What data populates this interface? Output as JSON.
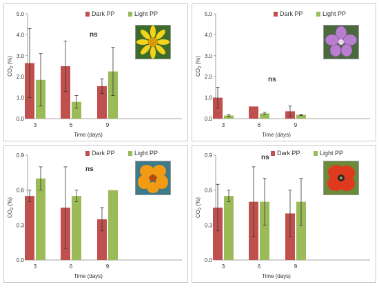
{
  "colors": {
    "dark": "#c0504d",
    "light": "#9bbb59",
    "axis": "#000000",
    "err": "#333333"
  },
  "chart_data": [
    {
      "type": "bar",
      "categories": [
        "3",
        "6",
        "9"
      ],
      "xlabel": "Time (days)",
      "ylabel": "CO2 (%)",
      "ylim": [
        0,
        5
      ],
      "yticks": [
        "0.0",
        "1.0",
        "2.0",
        "3.0",
        "4.0",
        "5.0"
      ],
      "annotation": "ns",
      "legend": "top-right",
      "flower_icon": "yellow-daisy-icon",
      "series": [
        {
          "name": "Dark PP",
          "values": [
            2.65,
            2.5,
            1.55
          ],
          "errors": [
            1.65,
            1.2,
            0.35
          ]
        },
        {
          "name": "Light PP",
          "values": [
            1.85,
            0.8,
            2.25
          ],
          "errors": [
            1.25,
            0.3,
            1.15
          ]
        }
      ]
    },
    {
      "type": "bar",
      "categories": [
        "3",
        "6",
        "9"
      ],
      "xlabel": "Time (days)",
      "ylabel": "CO2 (%)",
      "ylim": [
        0,
        5
      ],
      "yticks": [
        "0.0",
        "1.0",
        "2.0",
        "3.0",
        "4.0",
        "5.0"
      ],
      "annotation": "ns",
      "legend": "top-right",
      "flower_icon": "mallow-flower-icon",
      "series": [
        {
          "name": "Dark PP",
          "values": [
            1.0,
            0.58,
            0.35
          ],
          "errors": [
            0.5,
            0.0,
            0.25
          ]
        },
        {
          "name": "Light PP",
          "values": [
            0.15,
            0.25,
            0.18
          ],
          "errors": [
            0.05,
            0.05,
            0.03
          ]
        }
      ]
    },
    {
      "type": "bar",
      "categories": [
        "3",
        "6",
        "9"
      ],
      "xlabel": "Time (days)",
      "ylabel": "CO2 (%)",
      "ylim": [
        0,
        0.9
      ],
      "yticks": [
        "0.0",
        "0.3",
        "0.6",
        "0.9"
      ],
      "annotation": "ns",
      "legend": "top-right",
      "flower_icon": "nasturtium-flower-icon",
      "series": [
        {
          "name": "Dark PP",
          "values": [
            0.55,
            0.45,
            0.35
          ],
          "errors": [
            0.05,
            0.35,
            0.1
          ]
        },
        {
          "name": "Light PP",
          "values": [
            0.7,
            0.55,
            0.6
          ],
          "errors": [
            0.1,
            0.05,
            0.0
          ]
        }
      ]
    },
    {
      "type": "bar",
      "categories": [
        "3",
        "6",
        "9"
      ],
      "xlabel": "Time (days)",
      "ylabel": "CO2 (%)",
      "ylim": [
        0,
        0.9
      ],
      "yticks": [
        "0.0",
        "0.3",
        "0.6",
        "0.9"
      ],
      "annotation": "ns",
      "legend": "top-right",
      "flower_icon": "poppy-flower-icon",
      "series": [
        {
          "name": "Dark PP",
          "values": [
            0.45,
            0.5,
            0.4
          ],
          "errors": [
            0.2,
            0.3,
            0.2
          ]
        },
        {
          "name": "Light PP",
          "values": [
            0.55,
            0.5,
            0.5
          ],
          "errors": [
            0.05,
            0.2,
            0.2
          ]
        }
      ]
    }
  ]
}
